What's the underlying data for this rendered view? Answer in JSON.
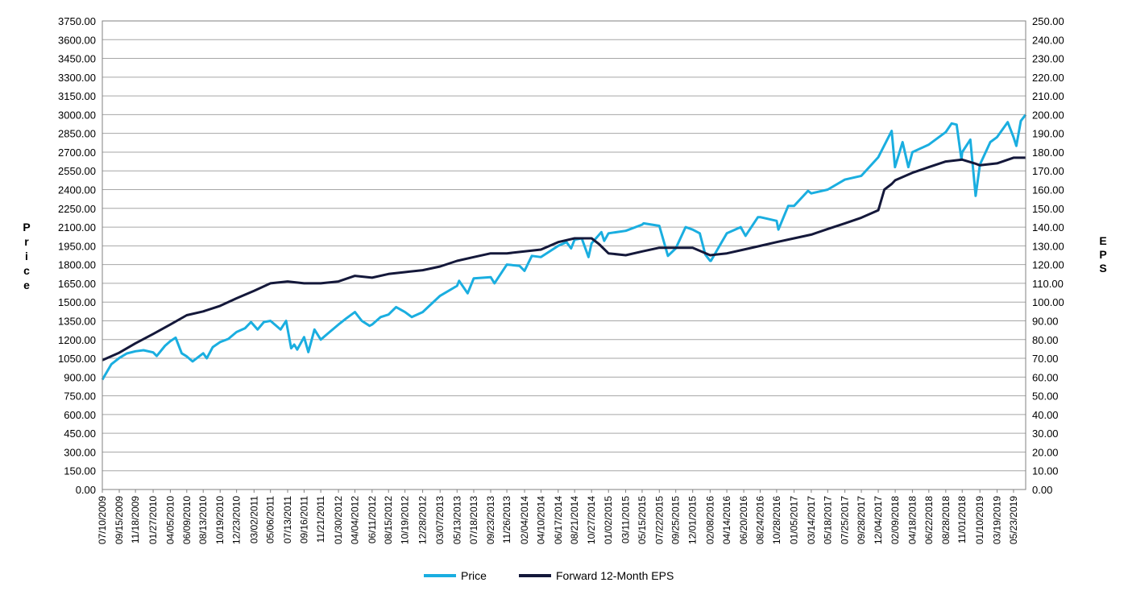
{
  "chart_data": {
    "type": "line",
    "title": "",
    "ylabel_left": "Price",
    "ylabel_right": "EPS",
    "ylim_left": [
      0,
      3750
    ],
    "ylim_right": [
      0,
      250
    ],
    "y_left_ticks": [
      "0.00",
      "150.00",
      "300.00",
      "450.00",
      "600.00",
      "750.00",
      "900.00",
      "1050.00",
      "1200.00",
      "1350.00",
      "1500.00",
      "1650.00",
      "1800.00",
      "1950.00",
      "2100.00",
      "2250.00",
      "2400.00",
      "2550.00",
      "2700.00",
      "2850.00",
      "3000.00",
      "3150.00",
      "3300.00",
      "3450.00",
      "3600.00",
      "3750.00"
    ],
    "y_right_ticks": [
      "0.00",
      "10.00",
      "20.00",
      "30.00",
      "40.00",
      "50.00",
      "60.00",
      "70.00",
      "80.00",
      "90.00",
      "100.00",
      "110.00",
      "120.00",
      "130.00",
      "140.00",
      "150.00",
      "160.00",
      "170.00",
      "180.00",
      "190.00",
      "200.00",
      "210.00",
      "220.00",
      "230.00",
      "240.00",
      "250.00"
    ],
    "x_ticks": [
      "07/10/2009",
      "09/15/2009",
      "11/18/2009",
      "01/27/2010",
      "04/05/2010",
      "06/09/2010",
      "08/13/2010",
      "10/19/2010",
      "12/23/2010",
      "03/02/2011",
      "05/06/2011",
      "07/13/2011",
      "09/16/2011",
      "11/21/2011",
      "01/30/2012",
      "04/04/2012",
      "06/11/2012",
      "08/15/2012",
      "10/19/2012",
      "12/28/2012",
      "03/07/2013",
      "05/13/2013",
      "07/18/2013",
      "09/23/2013",
      "11/26/2013",
      "02/04/2014",
      "04/10/2014",
      "06/17/2014",
      "08/21/2014",
      "10/27/2014",
      "01/02/2015",
      "03/11/2015",
      "05/15/2015",
      "07/22/2015",
      "09/25/2015",
      "12/01/2015",
      "02/08/2016",
      "04/14/2016",
      "06/20/2016",
      "08/24/2016",
      "10/28/2016",
      "01/05/2017",
      "03/14/2017",
      "05/18/2017",
      "07/25/2017",
      "09/28/2017",
      "12/04/2017",
      "02/09/2018",
      "04/18/2018",
      "06/22/2018",
      "08/28/2018",
      "11/01/2018",
      "01/10/2019",
      "03/19/2019",
      "05/23/2019"
    ],
    "grid": true,
    "legend_position": "bottom",
    "series": [
      {
        "name": "Price",
        "axis": "left",
        "color": "#1AAEE0",
        "x": [
          "07/10/2009",
          "08/15/2009",
          "09/15/2009",
          "10/15/2009",
          "11/18/2009",
          "12/20/2009",
          "01/27/2010",
          "02/10/2010",
          "03/15/2010",
          "04/05/2010",
          "04/26/2010",
          "05/20/2010",
          "06/09/2010",
          "07/02/2010",
          "08/13/2010",
          "08/27/2010",
          "09/20/2010",
          "10/19/2010",
          "11/20/2010",
          "12/23/2010",
          "01/25/2011",
          "02/18/2011",
          "03/16/2011",
          "04/10/2011",
          "05/06/2011",
          "06/15/2011",
          "07/07/2011",
          "07/27/2011",
          "08/08/2011",
          "08/20/2011",
          "09/16/2011",
          "10/03/2011",
          "10/27/2011",
          "11/21/2011",
          "12/20/2011",
          "01/30/2012",
          "03/01/2012",
          "04/04/2012",
          "05/01/2012",
          "06/01/2012",
          "06/11/2012",
          "07/15/2012",
          "08/15/2012",
          "09/14/2012",
          "10/19/2012",
          "11/15/2012",
          "12/28/2012",
          "03/07/2013",
          "05/13/2013",
          "05/21/2013",
          "06/24/2013",
          "07/18/2013",
          "09/23/2013",
          "10/08/2013",
          "11/26/2013",
          "01/15/2014",
          "02/04/2014",
          "03/05/2014",
          "04/10/2014",
          "06/17/2014",
          "07/20/2014",
          "08/07/2014",
          "08/21/2014",
          "09/18/2014",
          "10/15/2014",
          "10/27/2014",
          "12/05/2014",
          "12/16/2014",
          "01/02/2015",
          "03/11/2015",
          "05/15/2015",
          "05/21/2015",
          "07/22/2015",
          "08/25/2015",
          "09/25/2015",
          "11/03/2015",
          "12/01/2015",
          "12/29/2015",
          "01/20/2016",
          "02/08/2016",
          "02/11/2016",
          "04/14/2016",
          "06/08/2016",
          "06/27/2016",
          "08/15/2016",
          "08/24/2016",
          "10/28/2016",
          "11/04/2016",
          "12/13/2016",
          "01/05/2017",
          "03/01/2017",
          "03/14/2017",
          "05/18/2017",
          "07/25/2017",
          "09/28/2017",
          "12/04/2017",
          "01/26/2018",
          "02/08/2018",
          "03/10/2018",
          "04/02/2018",
          "04/18/2018",
          "06/22/2018",
          "08/28/2018",
          "09/20/2018",
          "10/10/2018",
          "10/29/2018",
          "11/01/2018",
          "12/03/2018",
          "12/24/2018",
          "01/10/2019",
          "02/20/2019",
          "03/19/2019",
          "04/30/2019",
          "05/23/2019",
          "06/03/2019",
          "06/21/2019",
          "07/10/2019"
        ],
        "y": [
          879,
          1003,
          1052,
          1089,
          1106,
          1115,
          1097,
          1068,
          1150,
          1187,
          1215,
          1090,
          1065,
          1025,
          1090,
          1050,
          1140,
          1180,
          1205,
          1260,
          1290,
          1340,
          1280,
          1340,
          1350,
          1280,
          1350,
          1130,
          1160,
          1120,
          1220,
          1100,
          1280,
          1200,
          1250,
          1320,
          1370,
          1420,
          1350,
          1310,
          1320,
          1380,
          1400,
          1460,
          1420,
          1380,
          1420,
          1550,
          1630,
          1670,
          1570,
          1690,
          1700,
          1650,
          1800,
          1790,
          1750,
          1870,
          1860,
          1950,
          1980,
          1930,
          2000,
          2010,
          1860,
          1970,
          2060,
          1990,
          2050,
          2070,
          2120,
          2130,
          2110,
          1870,
          1930,
          2100,
          2080,
          2050,
          1880,
          1830,
          1830,
          2050,
          2100,
          2030,
          2180,
          2180,
          2150,
          2080,
          2270,
          2270,
          2390,
          2370,
          2400,
          2480,
          2510,
          2660,
          2870,
          2580,
          2780,
          2580,
          2700,
          2760,
          2860,
          2930,
          2920,
          2640,
          2700,
          2800,
          2350,
          2600,
          2780,
          2820,
          2940,
          2820,
          2750,
          2950,
          3000
        ]
      },
      {
        "name": "Forward 12-Month EPS",
        "axis": "right",
        "color": "#14183A",
        "x": [
          "07/10/2009",
          "09/15/2009",
          "11/18/2009",
          "01/27/2010",
          "04/05/2010",
          "06/09/2010",
          "08/13/2010",
          "10/19/2010",
          "12/23/2010",
          "03/02/2011",
          "05/06/2011",
          "07/13/2011",
          "09/16/2011",
          "11/21/2011",
          "01/30/2012",
          "04/04/2012",
          "06/11/2012",
          "08/15/2012",
          "10/19/2012",
          "12/28/2012",
          "03/07/2013",
          "05/13/2013",
          "07/18/2013",
          "09/23/2013",
          "11/26/2013",
          "02/04/2014",
          "04/10/2014",
          "06/17/2014",
          "08/21/2014",
          "10/27/2014",
          "11/25/2014",
          "01/02/2015",
          "03/11/2015",
          "05/15/2015",
          "07/22/2015",
          "09/25/2015",
          "12/01/2015",
          "02/08/2016",
          "04/14/2016",
          "06/20/2016",
          "08/24/2016",
          "10/28/2016",
          "01/05/2017",
          "03/14/2017",
          "05/18/2017",
          "07/25/2017",
          "09/28/2017",
          "12/04/2017",
          "12/28/2017",
          "01/26/2018",
          "02/09/2018",
          "04/18/2018",
          "06/22/2018",
          "08/28/2018",
          "11/01/2018",
          "12/20/2018",
          "01/10/2019",
          "03/19/2019",
          "05/23/2019",
          "07/10/2019"
        ],
        "y": [
          69,
          73,
          78,
          83,
          88,
          93,
          95,
          98,
          102,
          106,
          110,
          111,
          110,
          110,
          111,
          114,
          113,
          115,
          116,
          117,
          119,
          122,
          124,
          126,
          126,
          127,
          128,
          132,
          134,
          134,
          131,
          126,
          125,
          127,
          129,
          129,
          129,
          125,
          126,
          128,
          130,
          132,
          134,
          136,
          139,
          142,
          145,
          149,
          160,
          163,
          165,
          169,
          172,
          175,
          176,
          174,
          173,
          174,
          177,
          177
        ]
      }
    ]
  },
  "legend": {
    "items": [
      {
        "label": "Price",
        "color": "#1AAEE0"
      },
      {
        "label": "Forward 12-Month EPS",
        "color": "#14183A"
      }
    ]
  }
}
